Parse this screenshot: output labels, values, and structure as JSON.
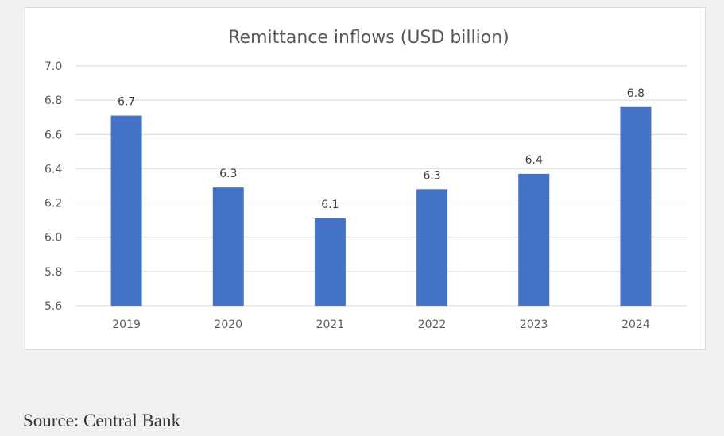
{
  "colors": {
    "bar": "#4472c4",
    "gridline": "#d9d9d9",
    "text": "#595959",
    "background": "#f0f0f0"
  },
  "chart_data": {
    "type": "bar",
    "title": "Remittance inflows (USD billion)",
    "xlabel": "",
    "ylabel": "",
    "categories": [
      "2019",
      "2020",
      "2021",
      "2022",
      "2023",
      "2024"
    ],
    "values": [
      6.71,
      6.29,
      6.11,
      6.28,
      6.37,
      6.76
    ],
    "data_labels": [
      "6.7",
      "6.3",
      "6.1",
      "6.3",
      "6.4",
      "6.8"
    ],
    "ylim": [
      5.6,
      7.0
    ],
    "yticks": [
      "5.6",
      "5.8",
      "6.0",
      "6.2",
      "6.4",
      "6.6",
      "6.8",
      "7.0"
    ],
    "grid": true,
    "legend": "none"
  },
  "source": "Source: Central Bank"
}
